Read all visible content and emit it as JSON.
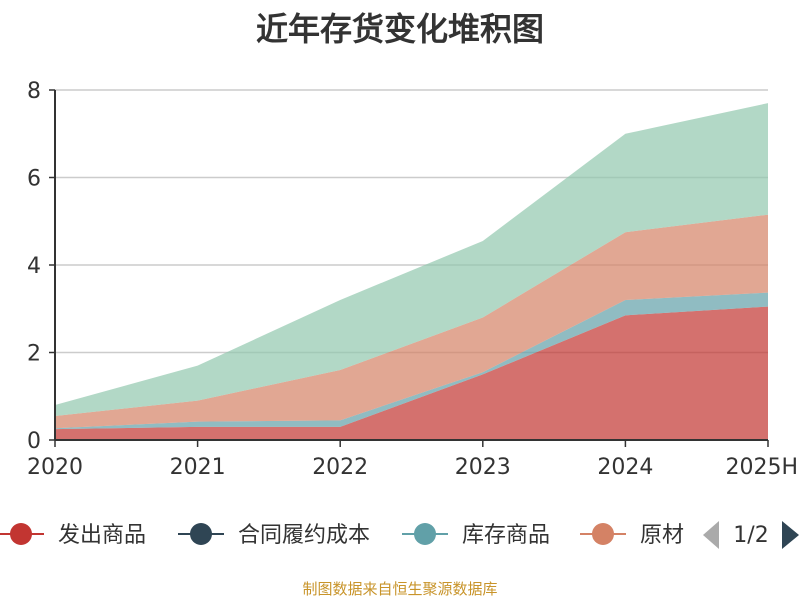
{
  "chart_data": {
    "type": "area",
    "stacked": true,
    "title": "近年存货变化堆积图",
    "categories": [
      "2020",
      "2021",
      "2022",
      "2023",
      "2024",
      "2025H"
    ],
    "y_ticks": [
      "0",
      "2",
      "4",
      "6",
      "8"
    ],
    "ylim": [
      0,
      8
    ],
    "grid": true,
    "series": [
      {
        "name": "发出商品",
        "color": "#c23531",
        "values": [
          0.25,
          0.3,
          0.3,
          1.5,
          2.85,
          3.05
        ]
      },
      {
        "name": "合同履约成本",
        "color": "#2f4554",
        "values": [
          0,
          0,
          0,
          0,
          0,
          0
        ]
      },
      {
        "name": "库存商品",
        "color": "#61a0a8",
        "values": [
          0.02,
          0.12,
          0.15,
          0.05,
          0.35,
          0.32
        ]
      },
      {
        "name": "原材料",
        "color": "#d48265",
        "values": [
          0.28,
          0.48,
          1.15,
          1.25,
          1.55,
          1.78
        ]
      },
      {
        "name": "",
        "color": "#91c7ae",
        "values": [
          0.25,
          0.8,
          1.6,
          1.75,
          2.25,
          2.55
        ]
      }
    ],
    "legend": {
      "position": "bottom",
      "visible_items": [
        "发出商品",
        "合同履约成本",
        "库存商品",
        "原材"
      ],
      "page_indicator": "1/2"
    }
  },
  "source_note": "制图数据来自恒生聚源数据库"
}
